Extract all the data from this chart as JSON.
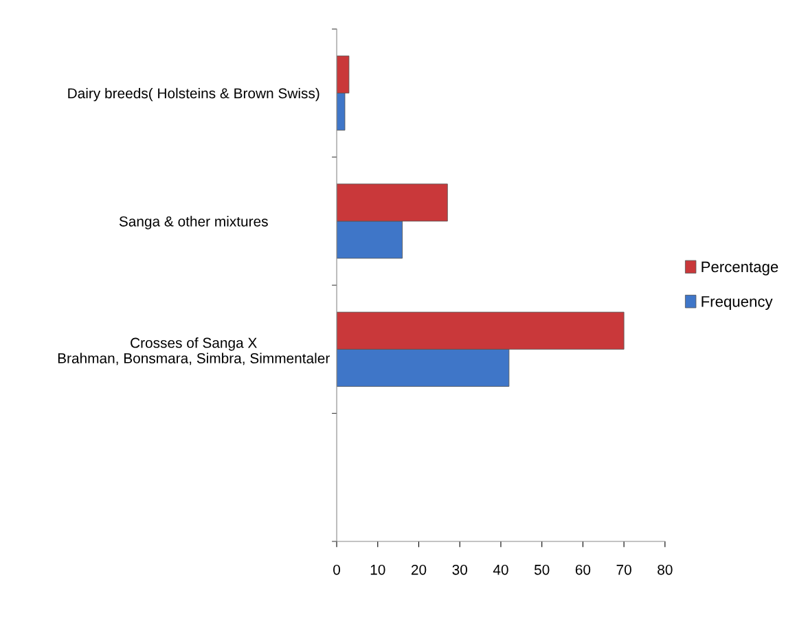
{
  "chart_data": {
    "type": "bar",
    "orientation": "horizontal",
    "categories": [
      "Dairy breeds( Holsteins & Brown Swiss)",
      "Sanga & other mixtures",
      "Crosses of Sanga X\nBrahman, Bonsmara, Simbra, Simmentaler",
      null
    ],
    "series": [
      {
        "name": "Frequency",
        "color": "#3f76c8",
        "values": [
          2,
          16,
          42,
          null
        ]
      },
      {
        "name": "Percentage",
        "color": "#c9383a",
        "values": [
          3,
          27,
          70,
          null
        ]
      }
    ],
    "xlim": [
      0,
      80
    ],
    "xticks": [
      0,
      10,
      20,
      30,
      40,
      50,
      60,
      70,
      80
    ],
    "grid": false,
    "legend": "right"
  }
}
